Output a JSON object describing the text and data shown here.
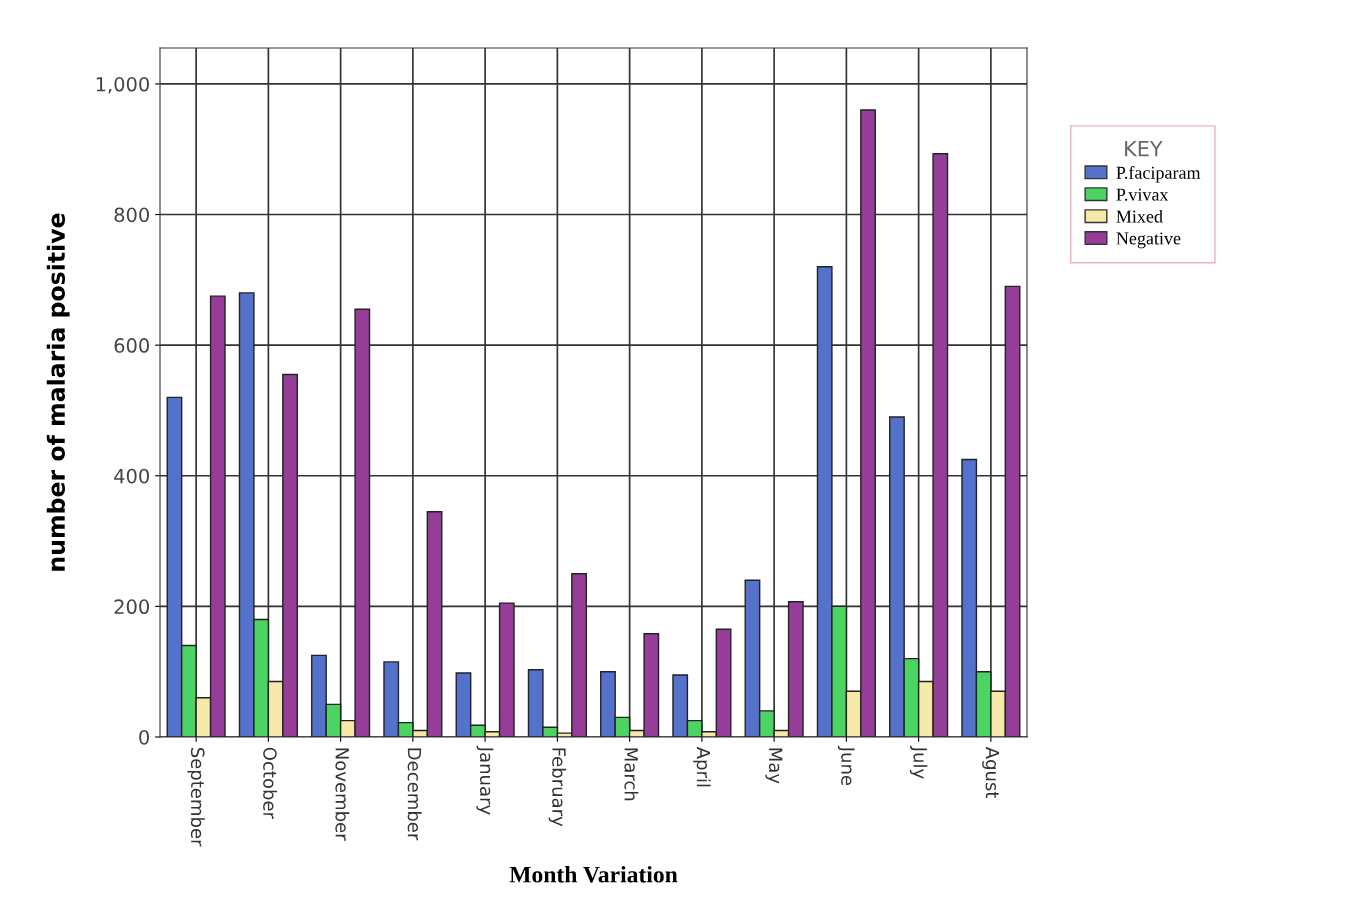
{
  "chart_data": {
    "type": "bar",
    "xlabel": "Month Variation",
    "ylabel": "number of malaria positive",
    "legend_title": "KEY",
    "categories": [
      "September",
      "October",
      "November",
      "December",
      "January",
      "February",
      "March",
      "April",
      "May",
      "June",
      "July",
      "Agust"
    ],
    "series": [
      {
        "name": "P.faciparam",
        "color": "#5472cc",
        "values": [
          520,
          680,
          125,
          115,
          98,
          103,
          100,
          95,
          240,
          720,
          490,
          425
        ]
      },
      {
        "name": "P.vivax",
        "color": "#4cd463",
        "values": [
          140,
          180,
          50,
          22,
          18,
          15,
          30,
          25,
          40,
          200,
          120,
          100
        ]
      },
      {
        "name": "Mixed",
        "color": "#f5e8a8",
        "values": [
          60,
          85,
          25,
          10,
          8,
          6,
          10,
          8,
          10,
          70,
          85,
          70
        ]
      },
      {
        "name": "Negative",
        "color": "#963d99",
        "values": [
          675,
          555,
          655,
          345,
          205,
          250,
          158,
          165,
          207,
          960,
          893,
          690
        ]
      }
    ],
    "ylim": [
      0,
      1055
    ],
    "yticks": [
      0,
      200,
      400,
      600,
      800,
      {
        "value": 1000,
        "label": "1,000"
      }
    ],
    "grid": true,
    "legend": "right"
  }
}
